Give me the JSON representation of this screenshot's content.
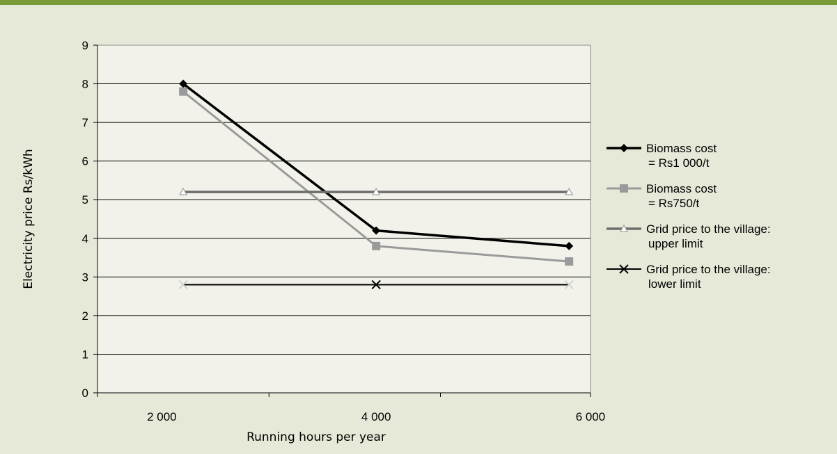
{
  "chart_data": {
    "type": "line",
    "title": "",
    "xlabel": "Running hours per year",
    "ylabel": "Electricity price Rs/kWh",
    "ylim": [
      0,
      9
    ],
    "yticks": [
      "0",
      "1",
      "2",
      "3",
      "4",
      "5",
      "6",
      "7",
      "8",
      "9"
    ],
    "x_tick_labels": [
      "2 000",
      "4 000",
      "6 000"
    ],
    "x": [
      2200,
      4000,
      5800
    ],
    "grid": "horizontal",
    "legend_position": "right",
    "series": [
      {
        "name_lines": [
          "Biomass cost",
          "= Rs1 000/t"
        ],
        "values": [
          8.0,
          4.2,
          3.8
        ],
        "color": "#000000",
        "marker": "diamond"
      },
      {
        "name_lines": [
          "Biomass cost",
          "= Rs750/t"
        ],
        "values": [
          7.8,
          3.8,
          3.4
        ],
        "color": "#9a9a9a",
        "marker": "square"
      },
      {
        "name_lines": [
          "Grid price to the village:",
          "upper limit"
        ],
        "values": [
          5.2,
          5.2,
          5.2
        ],
        "color": "#6e6e6e",
        "marker": "triangle"
      },
      {
        "name_lines": [
          "Grid price to the village:",
          "lower limit"
        ],
        "values": [
          2.8,
          2.8,
          2.8
        ],
        "color": "#000000",
        "marker": "x"
      }
    ]
  }
}
